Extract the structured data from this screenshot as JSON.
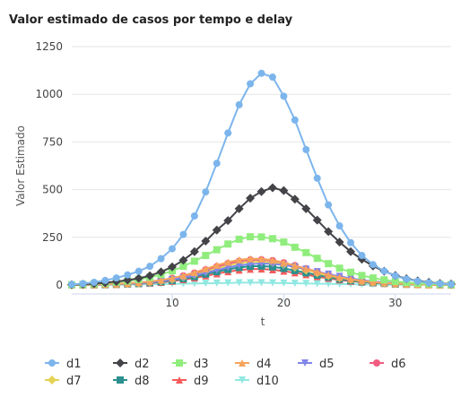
{
  "chart_data": {
    "type": "line",
    "title": "Valor estimado de casos por tempo e delay",
    "xlabel": "t",
    "ylabel": "Valor Estimado",
    "xlim": [
      1,
      35
    ],
    "ylim": [
      0,
      1250
    ],
    "xticks": [
      10,
      20,
      30
    ],
    "yticks": [
      0,
      250,
      500,
      750,
      1000,
      1250
    ],
    "grid": true,
    "legend_position": "bottom",
    "x": [
      1,
      2,
      3,
      4,
      5,
      6,
      7,
      8,
      9,
      10,
      11,
      12,
      13,
      14,
      15,
      16,
      17,
      18,
      19,
      20,
      21,
      22,
      23,
      24,
      25,
      26,
      27,
      28,
      29,
      30,
      31,
      32,
      33,
      34,
      35
    ],
    "series": [
      {
        "name": "d1",
        "color": "#7cb5ec",
        "marker": "circle",
        "values": [
          3,
          7,
          14,
          24,
          37,
          53,
          72,
          98,
          138,
          190,
          265,
          362,
          488,
          638,
          797,
          945,
          1055,
          1110,
          1090,
          990,
          865,
          710,
          560,
          420,
          310,
          222,
          155,
          107,
          73,
          48,
          31,
          20,
          12,
          7,
          4
        ]
      },
      {
        "name": "d2",
        "color": "#434348",
        "marker": "diamond",
        "values": [
          2,
          4,
          7,
          12,
          18,
          26,
          35,
          49,
          69,
          95,
          130,
          175,
          230,
          288,
          338,
          400,
          455,
          490,
          510,
          495,
          450,
          400,
          340,
          280,
          225,
          175,
          135,
          100,
          72,
          50,
          33,
          22,
          14,
          8,
          5
        ]
      },
      {
        "name": "d3",
        "color": "#90ed7d",
        "marker": "square",
        "values": [
          1,
          3,
          6,
          10,
          15,
          21,
          29,
          40,
          55,
          74,
          98,
          125,
          155,
          185,
          215,
          240,
          253,
          252,
          243,
          225,
          198,
          170,
          140,
          112,
          88,
          67,
          50,
          37,
          27,
          19,
          13,
          9,
          6,
          4,
          2
        ]
      },
      {
        "name": "d4",
        "color": "#f7a35c",
        "marker": "triangle",
        "values": [
          0,
          1,
          2,
          4,
          6,
          9,
          13,
          18,
          26,
          36,
          50,
          66,
          85,
          104,
          120,
          132,
          138,
          137,
          130,
          118,
          102,
          85,
          68,
          53,
          40,
          30,
          22,
          16,
          11,
          8,
          5,
          3,
          2,
          1,
          1
        ]
      },
      {
        "name": "d5",
        "color": "#8085e9",
        "marker": "triangle-down",
        "values": [
          0,
          1,
          2,
          3,
          5,
          7,
          10,
          14,
          20,
          28,
          38,
          50,
          64,
          78,
          92,
          103,
          110,
          113,
          111,
          105,
          95,
          83,
          70,
          57,
          45,
          35,
          26,
          19,
          14,
          10,
          7,
          5,
          3,
          2,
          1
        ]
      },
      {
        "name": "d6",
        "color": "#f15c80",
        "marker": "circle",
        "values": [
          0,
          1,
          2,
          4,
          6,
          9,
          13,
          18,
          25,
          35,
          48,
          63,
          80,
          97,
          113,
          125,
          132,
          133,
          128,
          117,
          102,
          86,
          70,
          55,
          42,
          32,
          24,
          17,
          12,
          8,
          6,
          4,
          2,
          1,
          1
        ]
      },
      {
        "name": "d7",
        "color": "#e4d354",
        "marker": "diamond",
        "values": [
          0,
          1,
          2,
          3,
          5,
          7,
          10,
          15,
          21,
          30,
          42,
          56,
          72,
          88,
          103,
          115,
          122,
          123,
          118,
          108,
          94,
          79,
          64,
          50,
          38,
          29,
          21,
          15,
          11,
          7,
          5,
          3,
          2,
          1,
          1
        ]
      },
      {
        "name": "d8",
        "color": "#2b908f",
        "marker": "square",
        "values": [
          0,
          1,
          1,
          2,
          4,
          6,
          8,
          12,
          17,
          24,
          33,
          44,
          57,
          70,
          82,
          92,
          98,
          99,
          95,
          87,
          76,
          64,
          52,
          41,
          31,
          23,
          17,
          12,
          9,
          6,
          4,
          3,
          2,
          1,
          1
        ]
      },
      {
        "name": "d9",
        "color": "#f45b5b",
        "marker": "triangle",
        "values": [
          0,
          1,
          1,
          2,
          3,
          5,
          7,
          10,
          14,
          20,
          28,
          37,
          48,
          59,
          70,
          78,
          83,
          84,
          80,
          73,
          64,
          54,
          44,
          35,
          27,
          20,
          15,
          11,
          8,
          5,
          4,
          3,
          2,
          1,
          0
        ]
      },
      {
        "name": "d10",
        "color": "#91e8e1",
        "marker": "triangle-down",
        "values": [
          0,
          0,
          1,
          1,
          2,
          2,
          3,
          4,
          5,
          6,
          7,
          8,
          9,
          10,
          11,
          12,
          12,
          12,
          11,
          10,
          9,
          8,
          7,
          6,
          5,
          4,
          3,
          3,
          2,
          2,
          1,
          1,
          1,
          0,
          0
        ]
      }
    ]
  }
}
